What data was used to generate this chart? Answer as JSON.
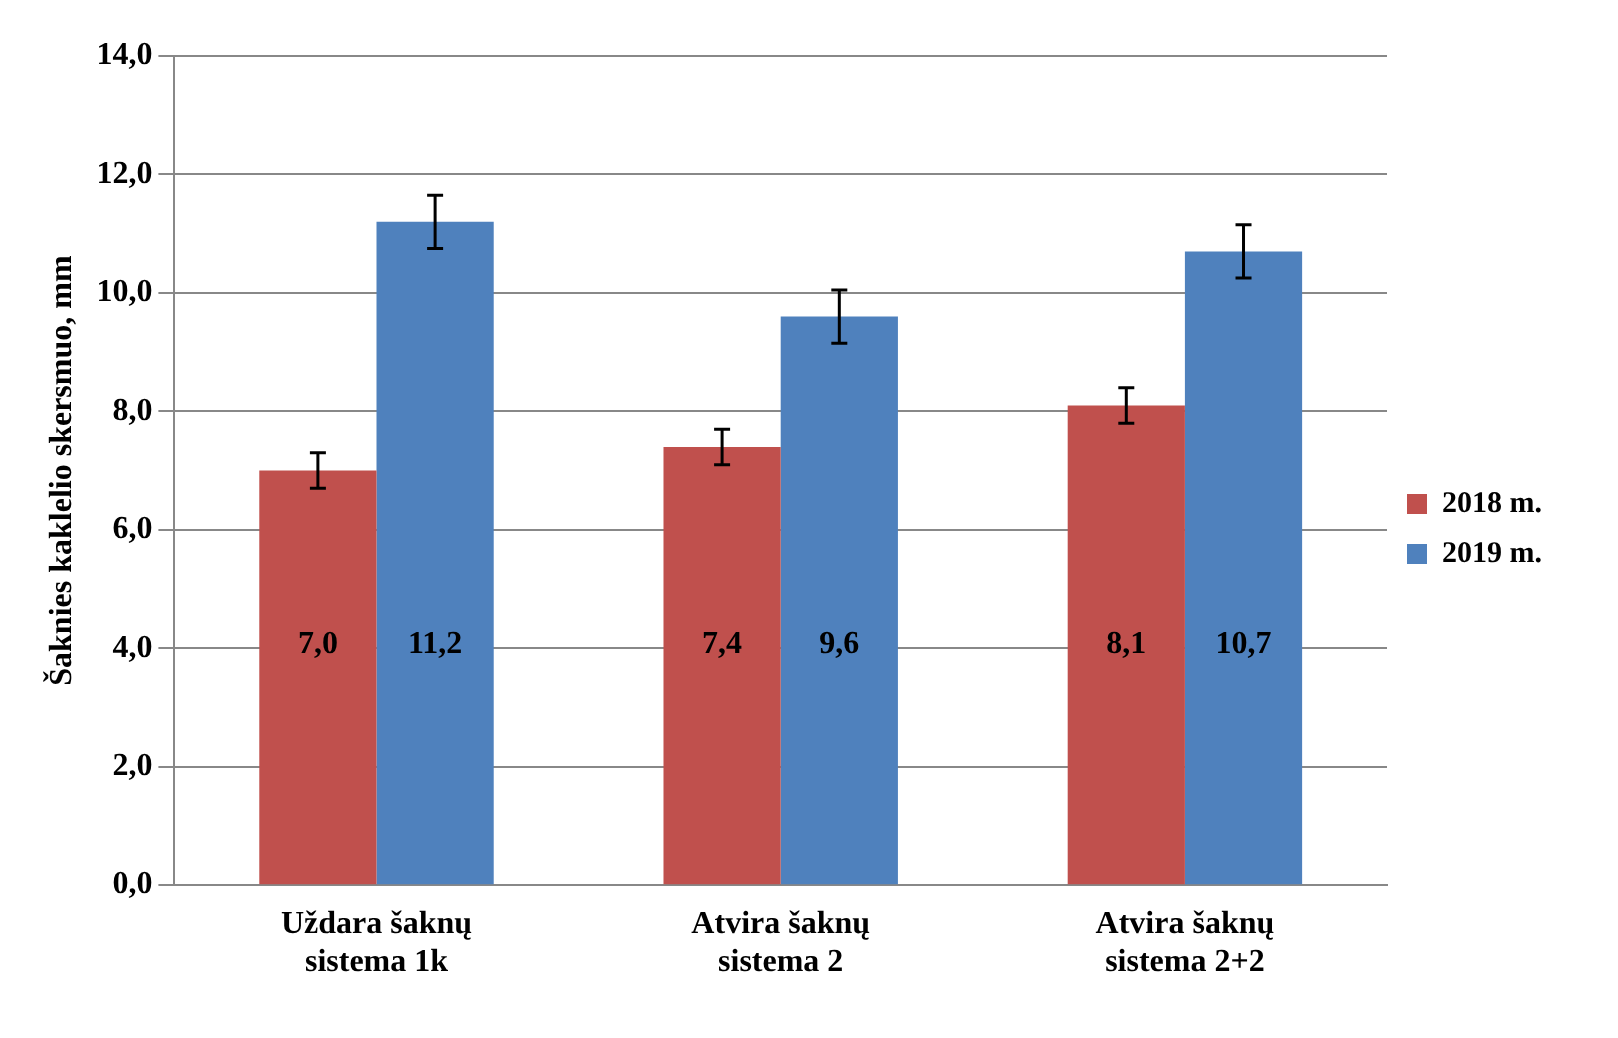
{
  "chart_data": {
    "type": "bar",
    "ylabel": "Šaknies kaklelio skersmuo, mm",
    "categories": [
      "Uždara šaknų sistema 1k",
      "Atvira šaknų sistema 2",
      "Atvira šaknų sistema 2+2"
    ],
    "series": [
      {
        "name": "2018 m.",
        "color": "#c0504d",
        "values": [
          7.0,
          7.4,
          8.1
        ],
        "value_labels": [
          "7,0",
          "7,4",
          "8,1"
        ],
        "errors": [
          0.3,
          0.3,
          0.3
        ]
      },
      {
        "name": "2019 m.",
        "color": "#4f81bd",
        "values": [
          11.2,
          9.6,
          10.7
        ],
        "value_labels": [
          "11,2",
          "9,6",
          "10,7"
        ],
        "errors": [
          0.45,
          0.45,
          0.45
        ]
      }
    ],
    "ylim": [
      0,
      14
    ],
    "yticks": [
      {
        "value": 0,
        "label": "0,0"
      },
      {
        "value": 2,
        "label": "2,0"
      },
      {
        "value": 4,
        "label": "4,0"
      },
      {
        "value": 6,
        "label": "6,0"
      },
      {
        "value": 8,
        "label": "8,0"
      },
      {
        "value": 10,
        "label": "10,0"
      },
      {
        "value": 12,
        "label": "12,0"
      },
      {
        "value": 14,
        "label": "14,0"
      }
    ],
    "grid": "y",
    "legend": "right"
  }
}
